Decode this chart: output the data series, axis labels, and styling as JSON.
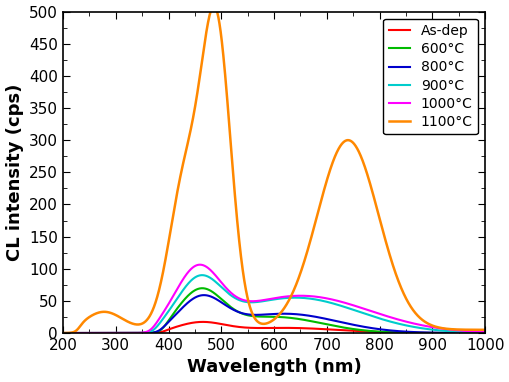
{
  "title": "",
  "xlabel": "Wavelength (nm)",
  "ylabel": "CL intensity (cps)",
  "xlim": [
    200,
    1000
  ],
  "ylim": [
    0,
    500
  ],
  "yticks": [
    0,
    50,
    100,
    150,
    200,
    250,
    300,
    350,
    400,
    450,
    500
  ],
  "xticks": [
    200,
    300,
    400,
    500,
    600,
    700,
    800,
    900,
    1000
  ],
  "background_color": "#ffffff",
  "legend_loc": "upper right",
  "legend_fontsize": 10,
  "axis_fontsize": 13,
  "tick_fontsize": 11,
  "series": [
    {
      "label": "As-dep",
      "color": "#ff0000",
      "linewidth": 1.5
    },
    {
      "label": "600°C",
      "color": "#00bb00",
      "linewidth": 1.5
    },
    {
      "label": "800°C",
      "color": "#0000cc",
      "linewidth": 1.5
    },
    {
      "label": "900°C",
      "color": "#00cccc",
      "linewidth": 1.5
    },
    {
      "label": "1000°C",
      "color": "#ff00ff",
      "linewidth": 1.5
    },
    {
      "label": "1100°C",
      "color": "#ff8800",
      "linewidth": 1.8
    }
  ]
}
